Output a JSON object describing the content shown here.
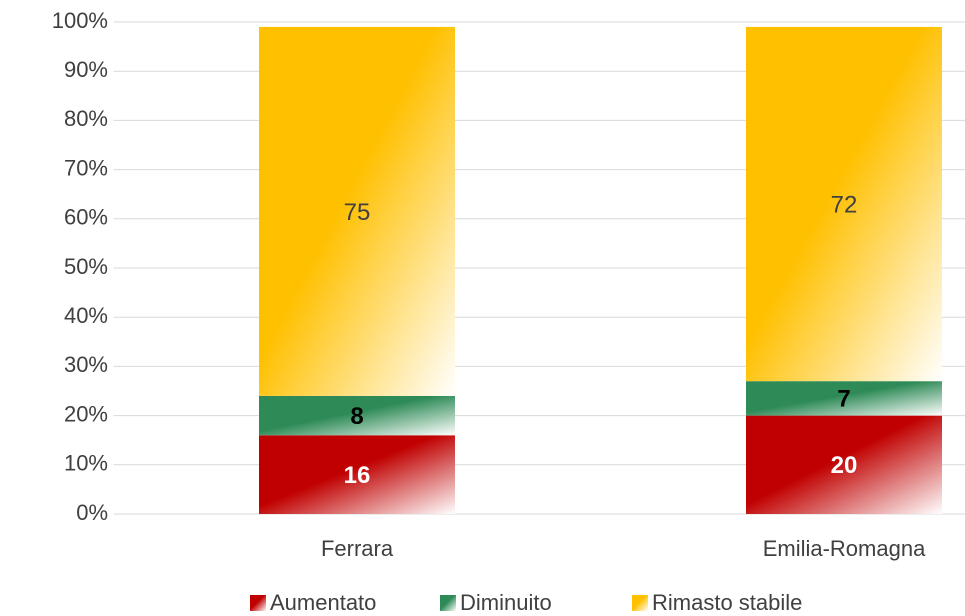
{
  "chart_data": {
    "type": "stacked_bar",
    "categories": [
      "Ferrara",
      "Emilia-Romagna"
    ],
    "series": [
      {
        "name": "Aumentato",
        "color": "#c00000",
        "values": [
          16,
          20
        ]
      },
      {
        "name": "Diminuito",
        "color": "#2e8b57",
        "values": [
          8,
          7
        ]
      },
      {
        "name": "Rimasto stabile",
        "color": "#ffc000",
        "values": [
          75,
          72
        ]
      }
    ],
    "ylim": [
      0,
      100
    ],
    "yticks": [
      {
        "value": 0,
        "label": "0%"
      },
      {
        "value": 10,
        "label": "10%"
      },
      {
        "value": 20,
        "label": "20%"
      },
      {
        "value": 30,
        "label": "30%"
      },
      {
        "value": 40,
        "label": "40%"
      },
      {
        "value": 50,
        "label": "50%"
      },
      {
        "value": 60,
        "label": "60%"
      },
      {
        "value": 70,
        "label": "70%"
      },
      {
        "value": 80,
        "label": "80%"
      },
      {
        "value": 90,
        "label": "90%"
      },
      {
        "value": 100,
        "label": "100%"
      }
    ],
    "grid": true,
    "legend": "bottom"
  }
}
